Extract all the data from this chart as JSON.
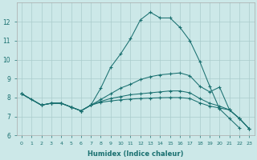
{
  "xlabel": "Humidex (Indice chaleur)",
  "bg_color": "#cce8e8",
  "line_color": "#1a7070",
  "grid_color": "#aacccc",
  "xlim": [
    -0.5,
    23.5
  ],
  "ylim": [
    6.0,
    13.0
  ],
  "yticks": [
    6,
    7,
    8,
    9,
    10,
    11,
    12
  ],
  "xticks": [
    0,
    1,
    2,
    3,
    4,
    5,
    6,
    7,
    8,
    9,
    10,
    11,
    12,
    13,
    14,
    15,
    16,
    17,
    18,
    19,
    20,
    21,
    22,
    23
  ],
  "line1_x": [
    0,
    1,
    2,
    3,
    4,
    5,
    6,
    7,
    8,
    9,
    10,
    11,
    12,
    13,
    14,
    15,
    16,
    17,
    18,
    19,
    20,
    21,
    22
  ],
  "line1_y": [
    8.2,
    7.9,
    7.6,
    7.7,
    7.7,
    7.5,
    7.3,
    7.6,
    8.5,
    9.6,
    10.3,
    11.1,
    12.1,
    12.5,
    12.2,
    12.2,
    11.7,
    11.0,
    9.9,
    8.6,
    7.4,
    6.9,
    6.4
  ],
  "line2_x": [
    0,
    2,
    3,
    4,
    5,
    6,
    7,
    8,
    9,
    10,
    11,
    12,
    13,
    14,
    15,
    16,
    17,
    18,
    19,
    20,
    21,
    22,
    23
  ],
  "line2_y": [
    8.2,
    7.6,
    7.7,
    7.7,
    7.5,
    7.3,
    7.6,
    7.9,
    8.2,
    8.5,
    8.7,
    8.95,
    9.1,
    9.2,
    9.25,
    9.3,
    9.15,
    8.6,
    8.3,
    8.55,
    7.35,
    6.9,
    6.35
  ],
  "line3_x": [
    0,
    2,
    3,
    4,
    5,
    6,
    7,
    8,
    9,
    10,
    11,
    12,
    13,
    14,
    15,
    16,
    17,
    18,
    19,
    20,
    21,
    22,
    23
  ],
  "line3_y": [
    8.2,
    7.6,
    7.7,
    7.7,
    7.5,
    7.3,
    7.6,
    7.8,
    7.95,
    8.05,
    8.15,
    8.2,
    8.25,
    8.3,
    8.35,
    8.35,
    8.25,
    7.95,
    7.7,
    7.55,
    7.35,
    6.9,
    6.35
  ],
  "line4_x": [
    0,
    2,
    3,
    4,
    5,
    6,
    7,
    8,
    9,
    10,
    11,
    12,
    13,
    14,
    15,
    16,
    17,
    18,
    19,
    20,
    21,
    22,
    23
  ],
  "line4_y": [
    8.2,
    7.6,
    7.7,
    7.7,
    7.5,
    7.3,
    7.6,
    7.75,
    7.82,
    7.88,
    7.92,
    7.95,
    7.97,
    7.99,
    8.0,
    8.0,
    7.95,
    7.72,
    7.55,
    7.45,
    7.35,
    6.9,
    6.35
  ]
}
